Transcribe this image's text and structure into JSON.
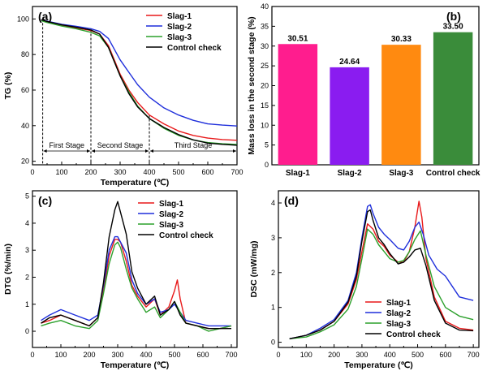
{
  "chart_data": [
    {
      "id": "a",
      "type": "line",
      "panel_label": "(a)",
      "xlabel": "Temperature (℃)",
      "ylabel": "TG (%)",
      "xlim": [
        0,
        700
      ],
      "ylim": [
        18,
        107
      ],
      "xticks": [
        0,
        100,
        200,
        300,
        400,
        500,
        600,
        700
      ],
      "yticks": [
        20,
        40,
        60,
        80,
        100
      ],
      "legend_position": "top-right",
      "stage_boundaries": [
        35,
        200,
        400
      ],
      "stage_labels": [
        "First Stage",
        "Second Stage",
        "Third Stage"
      ],
      "series": [
        {
          "name": "Slag-1",
          "color": "#e8191a",
          "x": [
            30,
            50,
            100,
            150,
            200,
            230,
            260,
            280,
            300,
            330,
            360,
            400,
            450,
            500,
            550,
            600,
            650,
            700
          ],
          "y": [
            99.5,
            98.5,
            96.5,
            95,
            93.5,
            91.5,
            85,
            77,
            69,
            60,
            53,
            46,
            41,
            37,
            34.5,
            33,
            32.2,
            31.8
          ]
        },
        {
          "name": "Slag-2",
          "color": "#1f2fdb",
          "x": [
            30,
            50,
            100,
            150,
            200,
            230,
            260,
            280,
            300,
            330,
            360,
            400,
            450,
            500,
            550,
            600,
            650,
            700
          ],
          "y": [
            99.5,
            98.8,
            97,
            95.8,
            94.5,
            93,
            89,
            83,
            77,
            70,
            63,
            56,
            50,
            46,
            43,
            41,
            40.3,
            39.8
          ]
        },
        {
          "name": "Slag-3",
          "color": "#2ca02c",
          "x": [
            30,
            50,
            100,
            150,
            200,
            230,
            260,
            280,
            300,
            330,
            360,
            400,
            450,
            500,
            550,
            600,
            650,
            700
          ],
          "y": [
            99,
            98,
            96,
            94.5,
            92.5,
            90.5,
            84,
            76,
            68,
            59,
            51,
            44,
            38.5,
            34.5,
            32,
            30.5,
            29.8,
            29.4
          ]
        },
        {
          "name": "Control check",
          "color": "#000000",
          "x": [
            30,
            50,
            100,
            150,
            200,
            230,
            260,
            280,
            300,
            330,
            360,
            400,
            450,
            500,
            550,
            600,
            650,
            700
          ],
          "y": [
            99.6,
            98.6,
            96.7,
            95.3,
            93.8,
            91.5,
            84,
            76,
            68,
            58,
            50.5,
            44,
            39,
            35,
            32,
            30.2,
            29.5,
            29
          ]
        }
      ]
    },
    {
      "id": "b",
      "type": "bar",
      "panel_label": "(b)",
      "xlabel": "",
      "ylabel": "Mass loss in the second stage (%)",
      "ylim": [
        0,
        40
      ],
      "yticks": [
        0,
        5,
        10,
        15,
        20,
        25,
        30,
        35,
        40
      ],
      "categories": [
        "Slag-1",
        "Slag-2",
        "Slag-3",
        "Control check"
      ],
      "values": [
        30.51,
        24.64,
        30.33,
        33.5
      ],
      "value_labels": [
        "30.51",
        "24.64",
        "30.33",
        "33.50"
      ],
      "colors": [
        "#ff1d8e",
        "#8a1cf0",
        "#ff8a10",
        "#3a8c3a"
      ]
    },
    {
      "id": "c",
      "type": "line",
      "panel_label": "(c)",
      "xlabel": "Temperature (℃)",
      "ylabel": "DTG (%/min)",
      "xlim": [
        0,
        720
      ],
      "ylim": [
        -0.6,
        5.2
      ],
      "xticks": [
        0,
        100,
        200,
        300,
        400,
        500,
        600,
        700
      ],
      "yticks": [
        0,
        1,
        2,
        3,
        4,
        5
      ],
      "legend_position": "top-right",
      "series": [
        {
          "name": "Slag-1",
          "color": "#e8191a",
          "x": [
            30,
            60,
            100,
            150,
            200,
            230,
            250,
            270,
            290,
            300,
            310,
            330,
            350,
            370,
            400,
            430,
            450,
            480,
            500,
            510,
            520,
            540,
            580,
            620,
            660,
            700
          ],
          "y": [
            0.3,
            0.4,
            0.6,
            0.4,
            0.2,
            0.5,
            1.5,
            2.8,
            3.4,
            3.4,
            3.3,
            2.6,
            1.7,
            1.3,
            0.9,
            1.2,
            0.6,
            0.9,
            1.5,
            1.9,
            1.2,
            0.3,
            0.2,
            0.1,
            0.1,
            0.2
          ]
        },
        {
          "name": "Slag-2",
          "color": "#1f2fdb",
          "x": [
            30,
            60,
            100,
            150,
            200,
            230,
            250,
            270,
            290,
            300,
            310,
            330,
            350,
            370,
            400,
            430,
            450,
            480,
            500,
            520,
            540,
            580,
            620,
            660,
            700
          ],
          "y": [
            0.4,
            0.6,
            0.8,
            0.6,
            0.4,
            0.6,
            1.7,
            3.0,
            3.5,
            3.5,
            3.3,
            2.9,
            1.9,
            1.4,
            1.0,
            1.2,
            0.7,
            0.8,
            1.0,
            0.7,
            0.4,
            0.3,
            0.2,
            0.2,
            0.2
          ]
        },
        {
          "name": "Slag-3",
          "color": "#2ca02c",
          "x": [
            30,
            60,
            100,
            150,
            200,
            230,
            250,
            270,
            290,
            300,
            310,
            330,
            350,
            370,
            400,
            430,
            450,
            480,
            500,
            520,
            540,
            580,
            620,
            660,
            700
          ],
          "y": [
            0.2,
            0.3,
            0.4,
            0.2,
            0.1,
            0.4,
            1.4,
            2.5,
            3.2,
            3.3,
            3.1,
            2.3,
            1.6,
            1.2,
            0.7,
            0.9,
            0.5,
            0.8,
            1.1,
            0.7,
            0.3,
            0.2,
            0.0,
            0.1,
            0.2
          ]
        },
        {
          "name": "Control check",
          "color": "#000000",
          "x": [
            30,
            60,
            100,
            150,
            200,
            230,
            250,
            270,
            290,
            300,
            310,
            330,
            350,
            370,
            400,
            430,
            450,
            480,
            500,
            520,
            540,
            580,
            620,
            660,
            700
          ],
          "y": [
            0.3,
            0.5,
            0.6,
            0.4,
            0.2,
            0.5,
            1.8,
            3.5,
            4.5,
            4.8,
            4.4,
            3.6,
            2.2,
            1.6,
            1.0,
            1.3,
            0.6,
            0.8,
            1.1,
            0.6,
            0.3,
            0.2,
            0.1,
            0.1,
            0.1
          ]
        }
      ]
    },
    {
      "id": "d",
      "type": "line",
      "panel_label": "(d)",
      "xlabel": "Temperature (℃)",
      "ylabel": "DSC (mW/mg)",
      "xlim": [
        0,
        720
      ],
      "ylim": [
        -0.15,
        4.35
      ],
      "xticks": [
        0,
        100,
        200,
        300,
        400,
        500,
        600,
        700
      ],
      "yticks": [
        0,
        1,
        2,
        3,
        4
      ],
      "legend_position": "bottom-left",
      "series": [
        {
          "name": "Slag-1",
          "color": "#e8191a",
          "x": [
            40,
            100,
            150,
            200,
            250,
            280,
            300,
            320,
            340,
            360,
            380,
            400,
            430,
            450,
            470,
            490,
            505,
            515,
            530,
            560,
            600,
            650,
            700
          ],
          "y": [
            0.1,
            0.2,
            0.35,
            0.6,
            1.1,
            1.8,
            2.6,
            3.4,
            3.25,
            2.9,
            2.75,
            2.5,
            2.3,
            2.3,
            2.6,
            3.3,
            4.05,
            3.6,
            2.4,
            1.3,
            0.6,
            0.4,
            0.35
          ]
        },
        {
          "name": "Slag-2",
          "color": "#1f2fdb",
          "x": [
            40,
            100,
            150,
            200,
            250,
            280,
            300,
            320,
            330,
            340,
            360,
            380,
            400,
            430,
            450,
            470,
            490,
            505,
            520,
            540,
            570,
            600,
            650,
            700
          ],
          "y": [
            0.1,
            0.2,
            0.4,
            0.65,
            1.2,
            2.0,
            3.0,
            3.9,
            3.95,
            3.7,
            3.3,
            3.1,
            2.95,
            2.7,
            2.65,
            2.9,
            3.3,
            3.45,
            3.1,
            2.5,
            2.1,
            1.9,
            1.3,
            1.2
          ]
        },
        {
          "name": "Slag-3",
          "color": "#2ca02c",
          "x": [
            40,
            100,
            150,
            200,
            250,
            280,
            300,
            320,
            340,
            360,
            380,
            400,
            430,
            450,
            470,
            490,
            510,
            530,
            560,
            600,
            650,
            700
          ],
          "y": [
            0.1,
            0.15,
            0.3,
            0.5,
            0.95,
            1.6,
            2.4,
            3.25,
            3.1,
            2.8,
            2.6,
            2.4,
            2.3,
            2.35,
            2.6,
            2.95,
            3.2,
            2.5,
            1.6,
            1.0,
            0.75,
            0.65
          ]
        },
        {
          "name": "Control check",
          "color": "#000000",
          "x": [
            40,
            100,
            150,
            200,
            250,
            280,
            300,
            320,
            330,
            340,
            360,
            380,
            400,
            430,
            450,
            470,
            490,
            510,
            530,
            560,
            600,
            650,
            700
          ],
          "y": [
            0.1,
            0.2,
            0.35,
            0.6,
            1.15,
            1.9,
            2.9,
            3.75,
            3.8,
            3.5,
            3.0,
            2.8,
            2.55,
            2.25,
            2.3,
            2.45,
            2.65,
            2.7,
            2.2,
            1.2,
            0.55,
            0.35,
            0.33
          ]
        }
      ]
    }
  ]
}
